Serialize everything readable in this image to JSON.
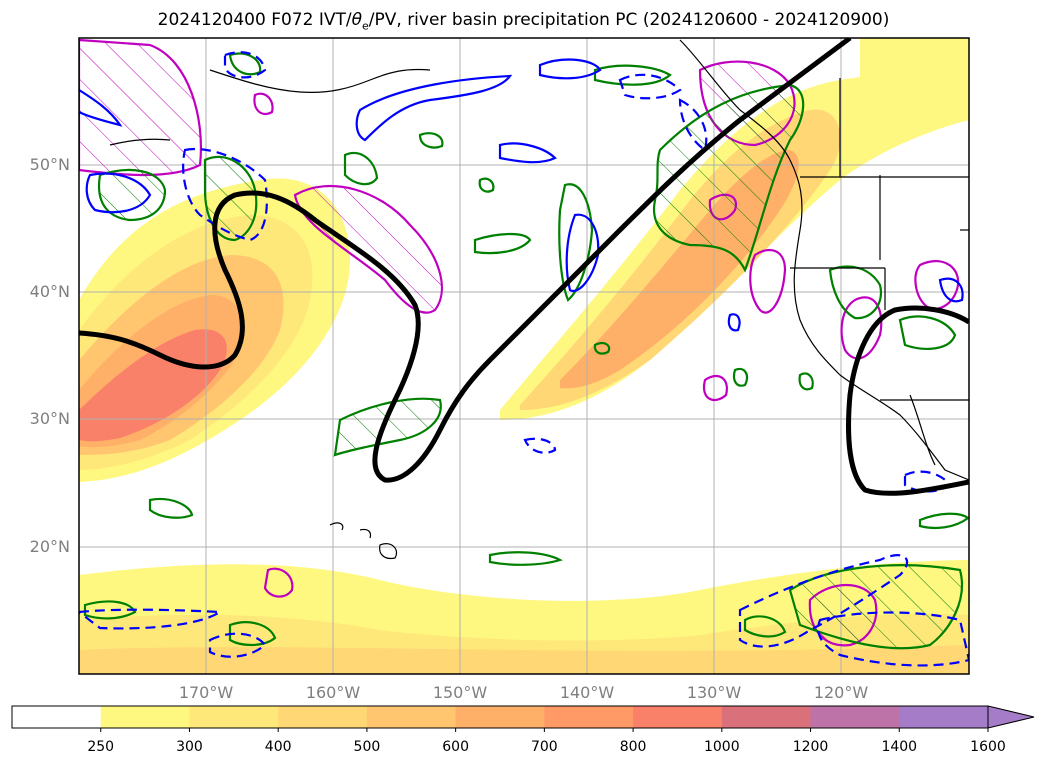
{
  "title": {
    "prefix": "2024120400 F072 IVT/",
    "theta": "θ",
    "theta_sub": "e",
    "suffix": "/PV, river basin precipitation PC (2024120600 - 2024120900)"
  },
  "lat_labels": [
    "50°N",
    "40°N",
    "30°N",
    "20°N"
  ],
  "lon_labels": [
    "170°W",
    "160°W",
    "150°W",
    "140°W",
    "130°W",
    "120°W"
  ],
  "colorbar": {
    "ticks": [
      "250",
      "300",
      "400",
      "500",
      "600",
      "700",
      "800",
      "1000",
      "1200",
      "1400",
      "1600"
    ],
    "colors": [
      "#ffffff",
      "#fff880",
      "#ffe87a",
      "#ffd775",
      "#ffc56f",
      "#ffb068",
      "#ff9a66",
      "#f98169",
      "#d9707a",
      "#bd73a8",
      "#a57cc8"
    ]
  },
  "colors": {
    "ivt_low": "#fff880",
    "ivt_mid": "#ffd37a",
    "ivt_high": "#f98169",
    "theta_e_contour": "#000000",
    "pv_contour_solid": "#0000ff",
    "precip_contour": "#008000",
    "hatch_contour": "#c000c0",
    "grid": "#b0b0b0"
  },
  "map": {
    "lat_range": [
      10,
      60
    ],
    "lon_range": [
      -180,
      -110
    ],
    "grid": true
  }
}
